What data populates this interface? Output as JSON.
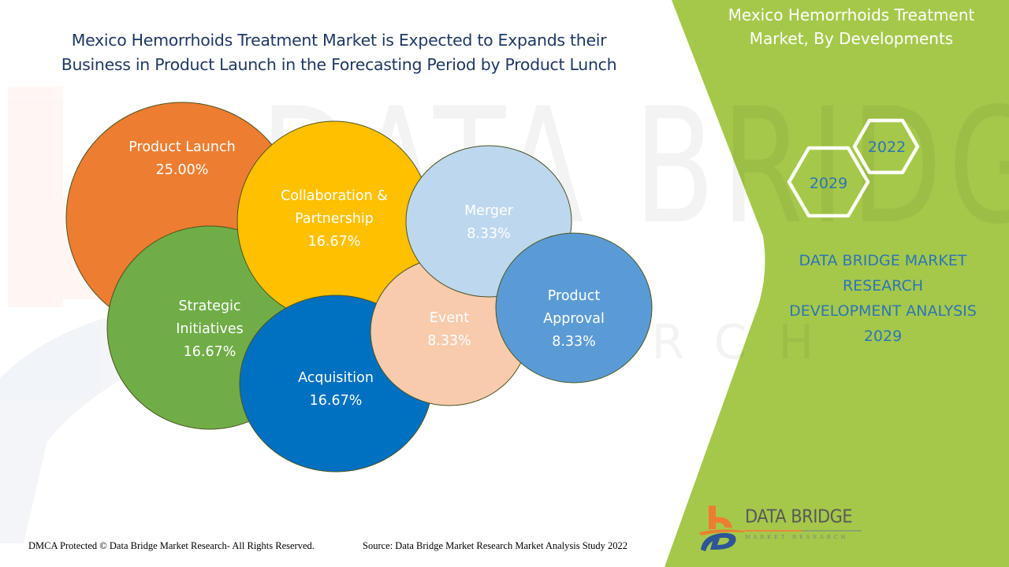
{
  "header": {
    "title_line1": "Mexico Hemorrhoids Treatment Market is Expected to Expands their",
    "title_line2": "Business in Product Launch in the Forecasting Period by Product Lunch"
  },
  "watermark": {
    "main": "DATA BRIDGE",
    "sub": "RESEARCH"
  },
  "side_panel": {
    "title_line1": "Mexico Hemorrhoids Treatment",
    "title_line2": "Market, By Developments",
    "years": [
      {
        "label": "2022",
        "icon": "hexagon-icon"
      },
      {
        "label": "2029",
        "icon": "hexagon-icon"
      }
    ],
    "analysis_lines": [
      "DATA BRIDGE MARKET",
      "RESEARCH",
      "DEVELOPMENT ANALYSIS",
      "2029"
    ],
    "accent_color": "#a5c84a",
    "text_color": "#2e75b6"
  },
  "logo": {
    "name": "DATA BRIDGE",
    "sub": "MARKET RESEARCH",
    "icon": "data-bridge-logo-icon"
  },
  "footer": {
    "dmca": "DMCA Protected © Data Bridge Market Research- All Rights Reserved.",
    "source": "Source: Data Bridge Market Research Market Analysis Study 2022"
  },
  "chart_data": {
    "type": "bubble",
    "title": "Mexico Hemorrhoids Treatment Market is Expected to Expands their Business in Product Launch in the Forecasting Period by Product Lunch",
    "categories": [
      "Product Launch",
      "Collaboration & Partnership",
      "Strategic Initiatives",
      "Acquisition",
      "Merger",
      "Event",
      "Product Approval"
    ],
    "values": [
      25.0,
      16.67,
      16.67,
      16.67,
      8.33,
      8.33,
      8.33
    ],
    "unit": "%",
    "series": [
      {
        "name": "Product Launch",
        "label_lines": [
          "Product Launch"
        ],
        "value": 25.0,
        "value_label": "25.00%",
        "color": "#ed7d31"
      },
      {
        "name": "Collaboration & Partnership",
        "label_lines": [
          "Collaboration &",
          "Partnership"
        ],
        "value": 16.67,
        "value_label": "16.67%",
        "color": "#ffc000"
      },
      {
        "name": "Strategic Initiatives",
        "label_lines": [
          "Strategic",
          "Initiatives"
        ],
        "value": 16.67,
        "value_label": "16.67%",
        "color": "#70ad47"
      },
      {
        "name": "Acquisition",
        "label_lines": [
          "Acquisition"
        ],
        "value": 16.67,
        "value_label": "16.67%",
        "color": "#0070c0"
      },
      {
        "name": "Merger",
        "label_lines": [
          "Merger"
        ],
        "value": 8.33,
        "value_label": "8.33%",
        "color": "#bdd7ee"
      },
      {
        "name": "Event",
        "label_lines": [
          "Event"
        ],
        "value": 8.33,
        "value_label": "8.33%",
        "color": "#f8cbad"
      },
      {
        "name": "Product Approval",
        "label_lines": [
          "Product",
          "Approval"
        ],
        "value": 8.33,
        "value_label": "8.33%",
        "color": "#5b9bd5"
      }
    ],
    "legend": "none",
    "grid": false
  }
}
